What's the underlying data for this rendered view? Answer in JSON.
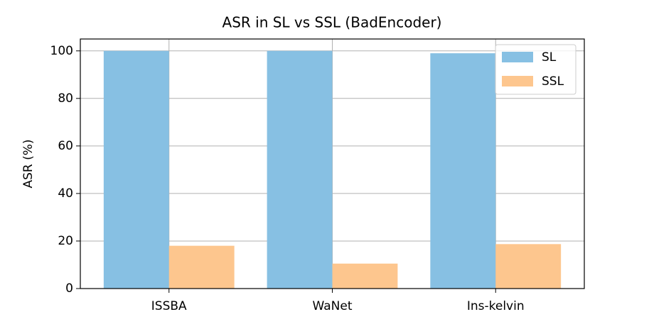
{
  "chart_data": {
    "type": "bar",
    "title": "ASR in SL vs SSL (BadEncoder)",
    "y_label": "ASR (%)",
    "categories": [
      "ISSBA",
      "WaNet",
      "Ins-kelvin"
    ],
    "series": [
      {
        "name": "SL",
        "color": "#87c0e3",
        "values": [
          100,
          100,
          99
        ]
      },
      {
        "name": "SSL",
        "color": "#fdc68e",
        "values": [
          18,
          10.5,
          18.7
        ]
      }
    ],
    "ylim": [
      0,
      105
    ],
    "yticks": [
      0,
      20,
      40,
      60,
      80,
      100
    ],
    "grid": true,
    "legend": "upper right"
  }
}
